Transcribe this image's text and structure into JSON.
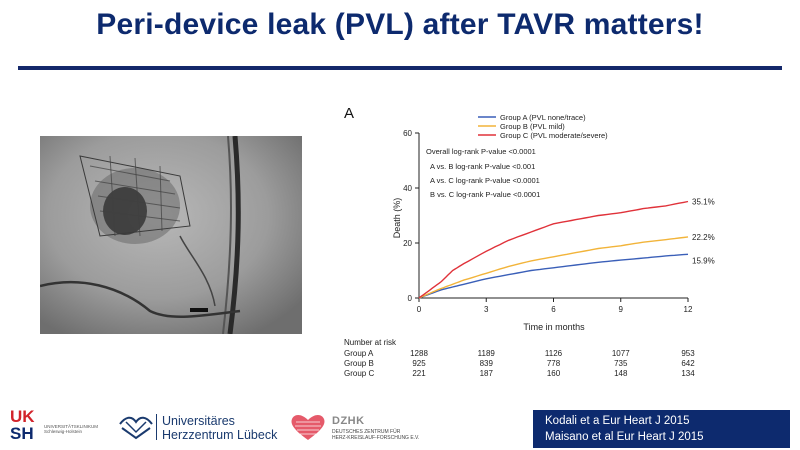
{
  "slide": {
    "title": "Peri-device leak (PVL) after TAVR matters!"
  },
  "chart_data": {
    "type": "line",
    "panel_label": "A",
    "xlabel": "Time in months",
    "ylabel": "Death (%)",
    "xlim": [
      0,
      12
    ],
    "ylim": [
      0,
      60
    ],
    "xticks": [
      "0",
      "3",
      "6",
      "9",
      "12"
    ],
    "yticks": [
      "0",
      "20",
      "40",
      "60"
    ],
    "legend_position": "top-right",
    "annotations": [
      "Overall log-rank P-value <0.0001",
      "A vs. B log-rank P-value <0.001",
      "A vs. C log-rank P-value <0.0001",
      "B vs. C log-rank P-value <0.0001"
    ],
    "series": [
      {
        "name": "Group A (PVL none/trace)",
        "color": "#3a5fb8",
        "end_label": "15.9%",
        "points": [
          [
            0,
            0
          ],
          [
            0.5,
            1.5
          ],
          [
            1,
            3
          ],
          [
            1.5,
            4
          ],
          [
            2,
            5
          ],
          [
            3,
            7
          ],
          [
            4,
            8.5
          ],
          [
            5,
            10
          ],
          [
            6,
            11
          ],
          [
            7,
            12
          ],
          [
            8,
            13
          ],
          [
            9,
            13.8
          ],
          [
            10,
            14.5
          ],
          [
            11,
            15.3
          ],
          [
            12,
            15.9
          ]
        ]
      },
      {
        "name": "Group B (PVL mild)",
        "color": "#f2b43a",
        "end_label": "22.2%",
        "points": [
          [
            0,
            0
          ],
          [
            0.5,
            1.8
          ],
          [
            1,
            3.5
          ],
          [
            1.5,
            5
          ],
          [
            2,
            6.5
          ],
          [
            3,
            9
          ],
          [
            4,
            11.5
          ],
          [
            5,
            13.5
          ],
          [
            6,
            15
          ],
          [
            7,
            16.5
          ],
          [
            8,
            18
          ],
          [
            9,
            19
          ],
          [
            10,
            20.3
          ],
          [
            11,
            21.2
          ],
          [
            12,
            22.2
          ]
        ]
      },
      {
        "name": "Group C (PVL moderate/severe)",
        "color": "#e0323a",
        "end_label": "35.1%",
        "points": [
          [
            0,
            0
          ],
          [
            0.5,
            3
          ],
          [
            1,
            6
          ],
          [
            1.5,
            10
          ],
          [
            2,
            12.5
          ],
          [
            3,
            17
          ],
          [
            4,
            21
          ],
          [
            5,
            24
          ],
          [
            6,
            27
          ],
          [
            7,
            28.5
          ],
          [
            8,
            30
          ],
          [
            9,
            31
          ],
          [
            10,
            32.5
          ],
          [
            11,
            33.5
          ],
          [
            12,
            35.1
          ]
        ]
      }
    ],
    "risk_table": {
      "title": "Number at risk",
      "rows": [
        {
          "label": "Group A",
          "values": [
            "1288",
            "1189",
            "1126",
            "1077",
            "953"
          ]
        },
        {
          "label": "Group B",
          "values": [
            "925",
            "839",
            "778",
            "735",
            "642"
          ]
        },
        {
          "label": "Group C",
          "values": [
            "221",
            "187",
            "160",
            "148",
            "134"
          ]
        }
      ]
    }
  },
  "footer": {
    "uksh": {
      "line1a": "UK",
      "line2a": "SH",
      "subtext": "UNIVERSITÄTSKLINIKUM Schleswig-Holstein"
    },
    "uhz": {
      "line1": "Universitäres",
      "line2": "Herzzentrum Lübeck"
    },
    "dzhk": {
      "name": "DZHK",
      "line1": "DEUTSCHES ZENTRUM FÜR",
      "line2": "HERZ-KREISLAUF-FORSCHUNG E.V."
    },
    "citation": {
      "line1": "Kodali et a Eur Heart J 2015",
      "line2": "Maisano et al Eur Heart J 2015"
    }
  }
}
